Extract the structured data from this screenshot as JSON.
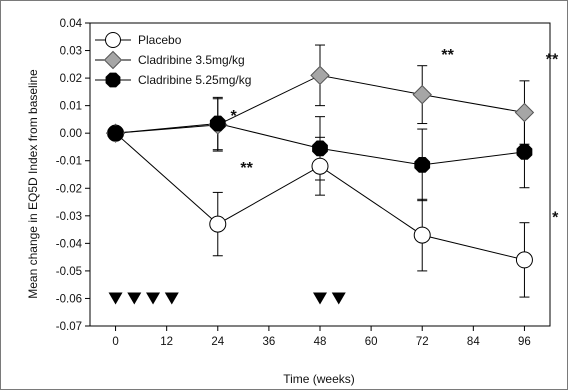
{
  "chart_data": {
    "type": "line",
    "title": "",
    "xlabel": "Time (weeks)",
    "ylabel": "Mean change in EQ5D Index from baseline",
    "xlim": [
      -6,
      102
    ],
    "ylim": [
      -0.07,
      0.04
    ],
    "xticks": [
      0,
      12,
      24,
      36,
      48,
      60,
      72,
      84,
      96
    ],
    "yticks": [
      0.04,
      0.03,
      0.02,
      0.01,
      0.0,
      -0.01,
      -0.02,
      -0.03,
      -0.04,
      -0.05,
      -0.06,
      -0.07
    ],
    "ytick_labels": [
      "0.04",
      "0.03",
      "0.02",
      "0.01",
      "0.00",
      "-0.01",
      "-0.02",
      "-0.03",
      "-0.04",
      "-0.05",
      "-0.06",
      "-0.07"
    ],
    "legend_position": "top-left",
    "series": [
      {
        "name": "Placebo",
        "marker": "circle",
        "fill": "#ffffff",
        "x": [
          0,
          24,
          48,
          72,
          96
        ],
        "y": [
          0.0,
          -0.033,
          -0.012,
          -0.037,
          -0.046
        ],
        "err": [
          0,
          0.0115,
          0.0105,
          0.013,
          0.0135
        ]
      },
      {
        "name": "Cladribine 3.5mg/kg",
        "marker": "diamond",
        "fill": "#a6a6a6",
        "x": [
          0,
          24,
          48,
          72,
          96
        ],
        "y": [
          0.0,
          0.003,
          0.021,
          0.014,
          0.0075
        ],
        "err": [
          0,
          0.0095,
          0.011,
          0.0105,
          0.0115
        ]
      },
      {
        "name": "Cladribine 5.25mg/kg",
        "marker": "octagon",
        "fill": "#000000",
        "x": [
          0,
          24,
          48,
          72,
          96
        ],
        "y": [
          0.0,
          0.0035,
          -0.0055,
          -0.0115,
          -0.0068
        ],
        "err": [
          0,
          0.0095,
          0.0115,
          0.013,
          0.013
        ]
      }
    ],
    "dosing_markers": [
      {
        "label": "▼",
        "x": 0
      },
      {
        "label": "▼",
        "x": 4.4
      },
      {
        "label": "▼",
        "x": 8.8
      },
      {
        "label": "▼",
        "x": 13.2
      },
      {
        "label": "▼",
        "x": 48
      },
      {
        "label": "▼",
        "x": 52.4
      }
    ],
    "dosing_y": -0.06,
    "annotations": [
      {
        "text": "*",
        "x": 27,
        "y": 0.0045
      },
      {
        "text": "**",
        "x": 29.3,
        "y": -0.0145
      },
      {
        "text": "**",
        "x": 76.5,
        "y": 0.0265
      },
      {
        "text": "**",
        "x": 101,
        "y": 0.025
      },
      {
        "text": "*",
        "x": 102.5,
        "y": -0.0325
      }
    ]
  }
}
